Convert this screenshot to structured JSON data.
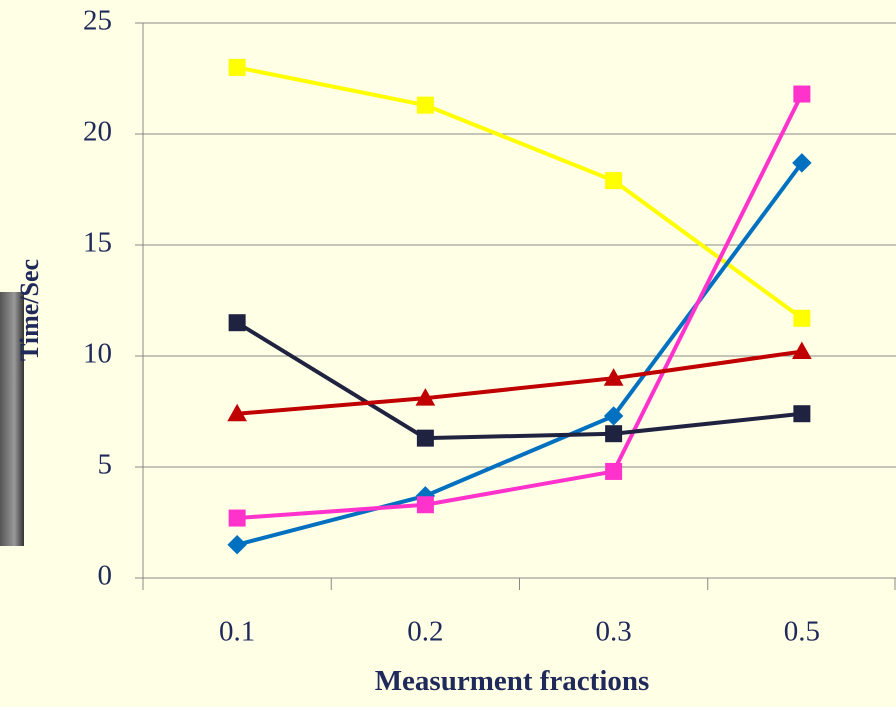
{
  "chart_data": {
    "type": "line",
    "x_label": "Measurment fractions",
    "y_label": "Time/Sec",
    "categories": [
      "0.1",
      "0.2",
      "0.3",
      "0.5"
    ],
    "series": [
      {
        "color": "#ffff00",
        "marker": "square",
        "values": [
          23,
          21.3,
          17.9,
          11.7
        ]
      },
      {
        "color": "#0070c0",
        "marker": "diamond",
        "values": [
          1.5,
          3.7,
          7.3,
          18.7
        ]
      },
      {
        "color": "#ff33cc",
        "marker": "square",
        "values": [
          2.7,
          3.3,
          4.8,
          21.8
        ]
      },
      {
        "color": "#1f2340",
        "marker": "square",
        "values": [
          11.5,
          6.3,
          6.5,
          7.4
        ]
      },
      {
        "color": "#c00000",
        "marker": "triangle",
        "values": [
          7.4,
          8.1,
          9.0,
          10.2
        ]
      }
    ],
    "ylim": [
      0,
      25
    ],
    "yticks": [
      0,
      5,
      10,
      15,
      20,
      25
    ],
    "grid": true
  }
}
